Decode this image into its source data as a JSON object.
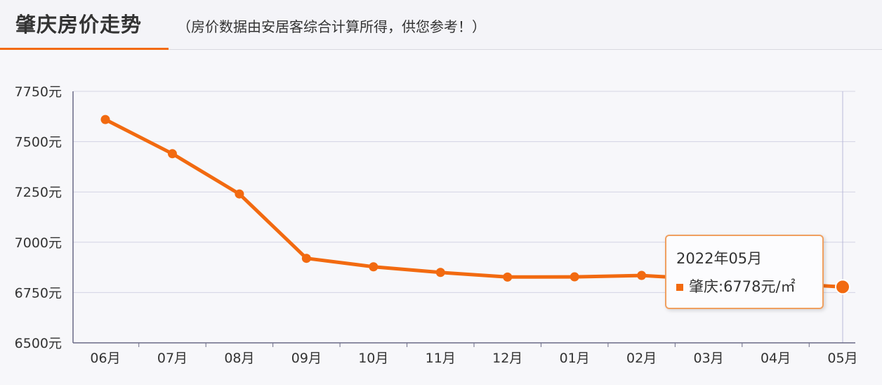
{
  "header": {
    "title": "肇庆房价走势",
    "subtitle": "（房价数据由安居客综合计算所得，供您参考！）"
  },
  "chart_data": {
    "type": "line",
    "categories": [
      "06月",
      "07月",
      "08月",
      "09月",
      "10月",
      "11月",
      "12月",
      "01月",
      "02月",
      "03月",
      "04月",
      "05月"
    ],
    "series": [
      {
        "name": "肇庆",
        "values": [
          7610,
          7440,
          7240,
          6920,
          6878,
          6850,
          6827,
          6828,
          6835,
          null,
          null,
          6778
        ]
      }
    ],
    "y_ticks": [
      6500,
      6750,
      7000,
      7250,
      7500,
      7750
    ],
    "y_tick_suffix": "元",
    "ylim": [
      6500,
      7750
    ],
    "grid": true,
    "line_color": "#f26a10",
    "tooltip": {
      "date": "2022年05月",
      "label": "肇庆:6778元/㎡"
    }
  }
}
